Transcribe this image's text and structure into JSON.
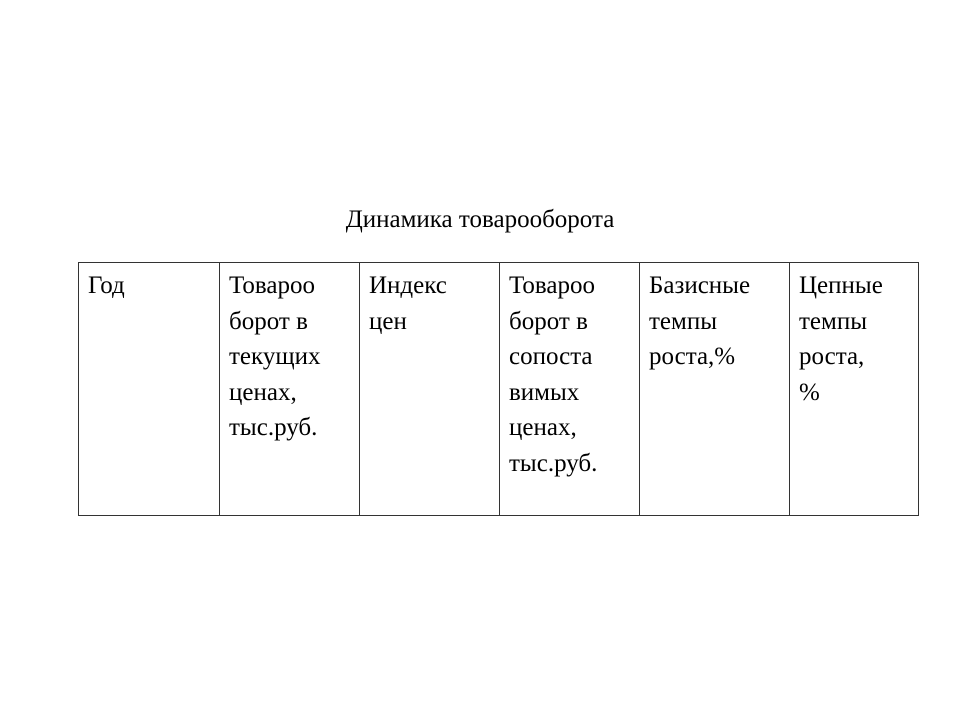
{
  "title": "Динамика товарооборота",
  "table": {
    "headers": [
      "Год",
      "Товароо\nборот в\nтекущих\nценах,\nтыс.руб.",
      "Индекс\nцен",
      "Товароо\nборот в\nсопоста\nвимых\nценах,\nтыс.руб.",
      "Базисные\nтемпы\nроста,%",
      "Цепные\nтемпы\nроста,\n%"
    ]
  }
}
